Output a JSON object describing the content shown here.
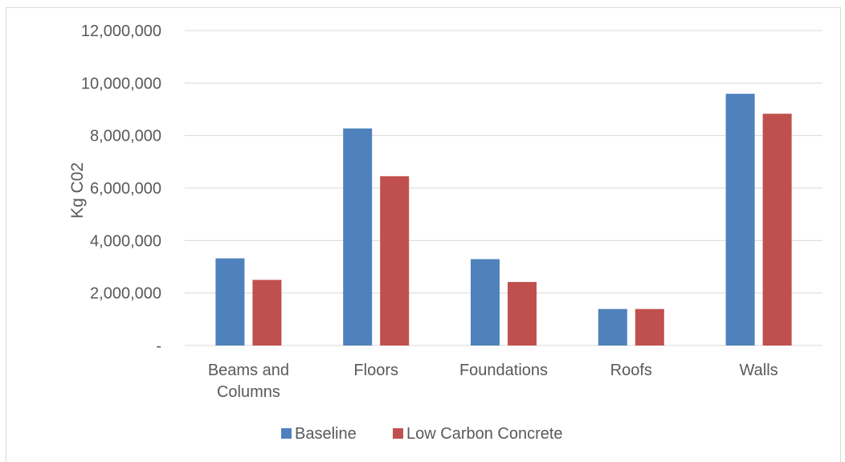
{
  "chart_data": {
    "type": "bar",
    "title": "",
    "xlabel": "",
    "ylabel": "Kg C02",
    "ylim": [
      0,
      12000000
    ],
    "yticks": [
      0,
      2000000,
      4000000,
      6000000,
      8000000,
      10000000,
      12000000
    ],
    "ytick_labels": [
      "-",
      "2,000,000",
      "4,000,000",
      "6,000,000",
      "8,000,000",
      "10,000,000",
      "12,000,000"
    ],
    "grid": true,
    "legend_position": "bottom",
    "categories": [
      [
        "Beams and",
        "Columns"
      ],
      [
        "Floors"
      ],
      [
        "Foundations"
      ],
      [
        "Roofs"
      ],
      [
        "Walls"
      ]
    ],
    "series": [
      {
        "name": "Baseline",
        "color": "#4f81bd",
        "values": [
          3320000,
          8270000,
          3290000,
          1390000,
          9590000
        ]
      },
      {
        "name": "Low Carbon Concrete",
        "color": "#c0504d",
        "values": [
          2500000,
          6450000,
          2420000,
          1390000,
          8830000
        ]
      }
    ]
  }
}
